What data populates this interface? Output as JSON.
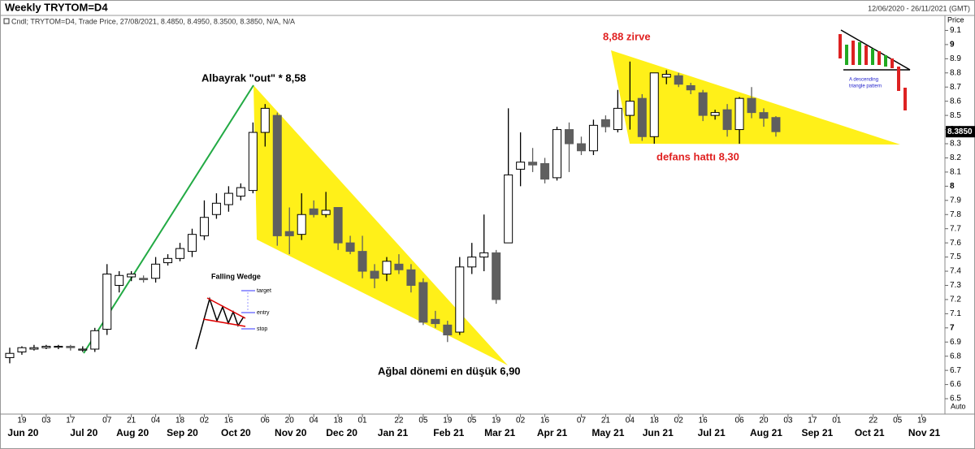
{
  "chart_data": {
    "type": "candlestick",
    "title": "Weekly TRYTOM=D4",
    "date_range": "12/06/2020 - 26/11/2021 (GMT)",
    "legend_text": "Cndl; TRYTOM=D4, Trade Price, 27/08/2021, 8.4850, 8.4950, 8.3500, 8.3850, N/A, N/A",
    "y_axis_title": "Price",
    "y_axis_mode": "Auto",
    "last_price": {
      "value": 8.385,
      "label": "8.3850"
    },
    "up_color": "#ffffff",
    "down_color": "#5f5f5f",
    "xlim": [
      -0.8,
      76.9
    ],
    "ylim": [
      6.42,
      9.2
    ],
    "yticks": [
      6.5,
      6.6,
      6.7,
      6.8,
      6.9,
      7,
      7.1,
      7.2,
      7.3,
      7.4,
      7.5,
      7.6,
      7.7,
      7.8,
      7.9,
      8,
      8.1,
      8.2,
      8.3,
      8.4,
      8.5,
      8.6,
      8.7,
      8.8,
      8.9,
      9,
      9.1
    ],
    "xticks": [
      {
        "value": 1,
        "label": "19"
      },
      {
        "value": 3,
        "label": "03"
      },
      {
        "value": 5,
        "label": "17"
      },
      {
        "value": 8,
        "label": "07"
      },
      {
        "value": 10,
        "label": "21"
      },
      {
        "value": 12,
        "label": "04"
      },
      {
        "value": 14,
        "label": "18"
      },
      {
        "value": 16,
        "label": "02"
      },
      {
        "value": 18,
        "label": "16"
      },
      {
        "value": 21,
        "label": "06"
      },
      {
        "value": 23,
        "label": "20"
      },
      {
        "value": 25,
        "label": "04"
      },
      {
        "value": 27,
        "label": "18"
      },
      {
        "value": 29,
        "label": "01"
      },
      {
        "value": 32,
        "label": "22"
      },
      {
        "value": 34,
        "label": "05"
      },
      {
        "value": 36,
        "label": "19"
      },
      {
        "value": 38,
        "label": "05"
      },
      {
        "value": 40,
        "label": "19"
      },
      {
        "value": 42,
        "label": "02"
      },
      {
        "value": 44,
        "label": "16"
      },
      {
        "value": 47,
        "label": "07"
      },
      {
        "value": 49,
        "label": "21"
      },
      {
        "value": 51,
        "label": "04"
      },
      {
        "value": 53,
        "label": "18"
      },
      {
        "value": 55,
        "label": "02"
      },
      {
        "value": 57,
        "label": "16"
      },
      {
        "value": 60,
        "label": "06"
      },
      {
        "value": 62,
        "label": "20"
      },
      {
        "value": 64,
        "label": "03"
      },
      {
        "value": 66,
        "label": "17"
      },
      {
        "value": 68,
        "label": "01"
      },
      {
        "value": 71,
        "label": "22"
      },
      {
        "value": 73,
        "label": "05"
      },
      {
        "value": 75,
        "label": "19"
      }
    ],
    "month_ticks": [
      {
        "value": 1.1,
        "label": "Jun 20"
      },
      {
        "value": 6.1,
        "label": "Jul 20"
      },
      {
        "value": 10.1,
        "label": "Aug 20"
      },
      {
        "value": 14.2,
        "label": "Sep 20"
      },
      {
        "value": 18.6,
        "label": "Oct 20"
      },
      {
        "value": 23.1,
        "label": "Nov 20"
      },
      {
        "value": 27.3,
        "label": "Dec 20"
      },
      {
        "value": 31.5,
        "label": "Jan 21"
      },
      {
        "value": 36.1,
        "label": "Feb 21"
      },
      {
        "value": 40.3,
        "label": "Mar 21"
      },
      {
        "value": 44.6,
        "label": "Apr 21"
      },
      {
        "value": 49.2,
        "label": "May 21"
      },
      {
        "value": 53.3,
        "label": "Jun 21"
      },
      {
        "value": 57.7,
        "label": "Jul 21"
      },
      {
        "value": 62.2,
        "label": "Aug 21"
      },
      {
        "value": 66.4,
        "label": "Sep 21"
      },
      {
        "value": 70.7,
        "label": "Oct 21"
      },
      {
        "value": 75.2,
        "label": "Nov 21"
      }
    ],
    "open": [
      6.79,
      6.83,
      6.85,
      6.86,
      6.87,
      6.87,
      6.85,
      6.85,
      6.99,
      7.3,
      7.36,
      7.35,
      7.35,
      7.46,
      7.49,
      7.54,
      7.65,
      7.8,
      7.87,
      7.93,
      7.97,
      8.38,
      8.5,
      7.68,
      7.66,
      7.84,
      7.8,
      7.85,
      7.6,
      7.54,
      7.4,
      7.38,
      7.45,
      7.41,
      7.32,
      7.06,
      7.02,
      6.97,
      7.43,
      7.5,
      7.53,
      7.6,
      8.12,
      8.17,
      8.16,
      8.06,
      8.4,
      8.3,
      8.25,
      8.47,
      8.4,
      8.5,
      8.62,
      8.35,
      8.77,
      8.78,
      8.71,
      8.66,
      8.5,
      8.54,
      8.4,
      8.62,
      8.52,
      8.485
    ],
    "high": [
      6.86,
      6.87,
      6.88,
      6.88,
      6.88,
      6.88,
      6.87,
      7.0,
      7.45,
      7.4,
      7.4,
      7.37,
      7.5,
      7.52,
      7.6,
      7.7,
      7.9,
      7.95,
      8.0,
      8.02,
      8.45,
      8.58,
      8.52,
      7.85,
      7.95,
      7.9,
      7.96,
      7.85,
      7.65,
      7.65,
      7.45,
      7.5,
      7.52,
      7.45,
      7.35,
      7.12,
      7.05,
      7.5,
      7.6,
      7.8,
      7.55,
      8.55,
      8.38,
      8.27,
      8.2,
      8.42,
      8.45,
      8.35,
      8.47,
      8.5,
      8.68,
      8.88,
      8.65,
      8.8,
      8.82,
      8.8,
      8.73,
      8.68,
      8.54,
      8.58,
      8.63,
      8.7,
      8.55,
      8.495
    ],
    "low": [
      6.75,
      6.81,
      6.84,
      6.85,
      6.85,
      6.84,
      6.83,
      6.83,
      6.95,
      7.25,
      7.33,
      7.32,
      7.32,
      7.44,
      7.47,
      7.5,
      7.62,
      7.77,
      7.82,
      7.9,
      7.95,
      8.28,
      7.58,
      7.52,
      7.62,
      7.78,
      7.78,
      7.55,
      7.52,
      7.35,
      7.28,
      7.33,
      7.38,
      7.25,
      7.02,
      7.0,
      6.9,
      6.95,
      7.38,
      7.4,
      7.17,
      7.6,
      8.0,
      8.1,
      8.02,
      8.04,
      8.1,
      8.22,
      8.22,
      8.38,
      8.38,
      8.4,
      8.32,
      8.3,
      8.72,
      8.7,
      8.65,
      8.46,
      8.47,
      8.35,
      8.3,
      8.48,
      8.42,
      8.35
    ],
    "close": [
      6.82,
      6.86,
      6.86,
      6.87,
      6.87,
      6.86,
      6.85,
      6.98,
      7.38,
      7.37,
      7.38,
      7.34,
      7.45,
      7.49,
      7.56,
      7.66,
      7.78,
      7.88,
      7.95,
      7.99,
      8.38,
      8.55,
      7.65,
      7.65,
      7.8,
      7.8,
      7.83,
      7.6,
      7.54,
      7.4,
      7.35,
      7.47,
      7.41,
      7.3,
      7.04,
      7.03,
      6.95,
      7.43,
      7.5,
      7.53,
      7.2,
      8.08,
      8.17,
      8.15,
      8.05,
      8.4,
      8.3,
      8.25,
      8.43,
      8.42,
      8.55,
      8.6,
      8.35,
      8.8,
      8.79,
      8.72,
      8.68,
      8.5,
      8.52,
      8.4,
      8.62,
      8.52,
      8.48,
      8.385
    ],
    "annotations": [
      {
        "text": "Albayrak \"out\" * 8,58",
        "color": "#000000"
      },
      {
        "text": "Ağbal dönemi en düşük 6,90",
        "color": "#000000"
      },
      {
        "text": "8,88 zirve",
        "color": "#e02020"
      },
      {
        "text": "defans hattı 8,30",
        "color": "#e02020"
      }
    ],
    "falling_wedge_inset": {
      "title": "Falling Wedge",
      "labels": [
        "target",
        "entry",
        "stop"
      ]
    },
    "triangle_inset": {
      "lines": [
        "A descending",
        "triangle pattern"
      ]
    }
  }
}
